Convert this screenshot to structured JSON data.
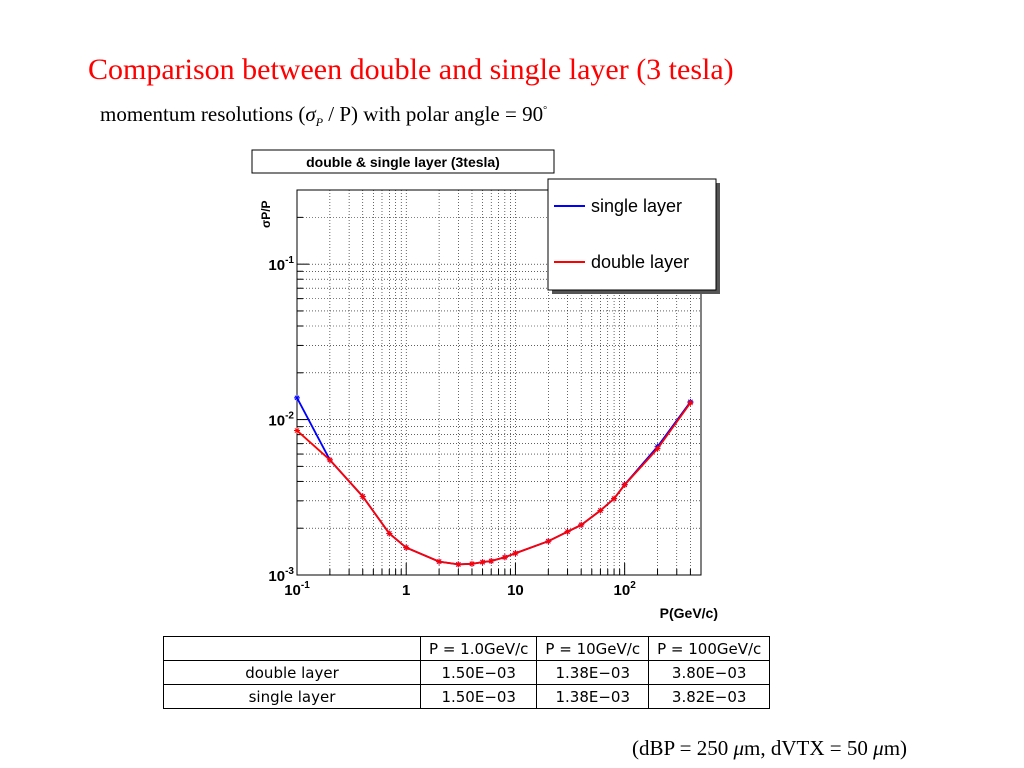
{
  "slide": {
    "title": "Comparison between double and single layer (3 tesla)",
    "subtitle_prefix": "momentum resolutions (",
    "subtitle_sigma": "σ",
    "subtitle_sub": "P",
    "subtitle_mid": " / P) with polar angle = 90",
    "subtitle_deg": "°",
    "footnote_a": "(dBP = 250 ",
    "footnote_mu1": "μ",
    "footnote_b": "m, dVTX = 50 ",
    "footnote_mu2": "μ",
    "footnote_c": "m)"
  },
  "chart_data": {
    "type": "line",
    "title": "double & single layer (3tesla)",
    "xlabel": "P(GeV/c)",
    "ylabel": "σP/P",
    "xscale": "log",
    "yscale": "log",
    "xlim": [
      0.1,
      500
    ],
    "ylim": [
      0.001,
      0.3
    ],
    "xticks": [
      {
        "value": 0.1,
        "label": "10",
        "exp": "-1"
      },
      {
        "value": 1,
        "label": "1",
        "exp": ""
      },
      {
        "value": 10,
        "label": "10",
        "exp": ""
      },
      {
        "value": 100,
        "label": "10",
        "exp": "2"
      }
    ],
    "yticks": [
      {
        "value": 0.001,
        "label": "10",
        "exp": "-3"
      },
      {
        "value": 0.01,
        "label": "10",
        "exp": "-2"
      },
      {
        "value": 0.1,
        "label": "10",
        "exp": "-1"
      }
    ],
    "grid": true,
    "legend_position": "top-right",
    "series": [
      {
        "name": "single layer",
        "color": "#0000ff",
        "x": [
          0.1,
          0.2,
          0.4,
          0.7,
          1,
          2,
          3,
          4,
          5,
          6,
          8,
          10,
          20,
          30,
          40,
          60,
          80,
          100,
          200,
          400
        ],
        "y": [
          0.0138,
          0.0055,
          0.0032,
          0.00185,
          0.0015,
          0.00122,
          0.00117,
          0.00118,
          0.00121,
          0.00123,
          0.0013,
          0.00138,
          0.00165,
          0.0019,
          0.0021,
          0.0026,
          0.0031,
          0.00382,
          0.0067,
          0.013
        ]
      },
      {
        "name": "double layer",
        "color": "#ff0000",
        "x": [
          0.1,
          0.2,
          0.4,
          0.7,
          1,
          2,
          3,
          4,
          5,
          6,
          8,
          10,
          20,
          30,
          40,
          60,
          80,
          100,
          200,
          400
        ],
        "y": [
          0.0085,
          0.0055,
          0.0032,
          0.00185,
          0.0015,
          0.00122,
          0.00117,
          0.00118,
          0.00121,
          0.00123,
          0.0013,
          0.00138,
          0.00165,
          0.0019,
          0.0021,
          0.0026,
          0.0031,
          0.0038,
          0.0065,
          0.0128
        ]
      }
    ]
  },
  "table": {
    "headers": [
      "",
      "P = 1.0GeV/c",
      "P = 10GeV/c",
      "P = 100GeV/c"
    ],
    "rows": [
      {
        "label": "double layer",
        "values": [
          "1.50E−03",
          "1.38E−03",
          "3.80E−03"
        ]
      },
      {
        "label": "single layer",
        "values": [
          "1.50E−03",
          "1.38E−03",
          "3.82E−03"
        ]
      }
    ]
  }
}
